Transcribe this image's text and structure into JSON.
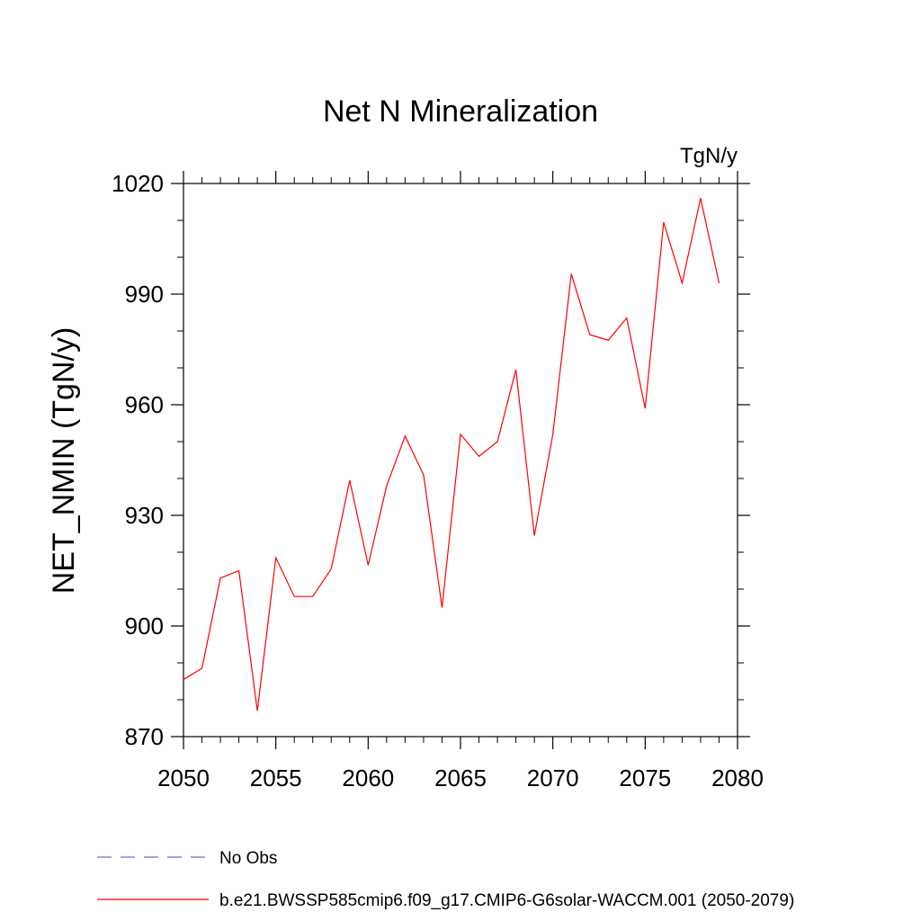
{
  "chart_data": {
    "type": "line",
    "title": "Net N Mineralization",
    "units_label": "TgN/y",
    "ylabel": "NET_NMIN  (TgN/y)",
    "xlabel": "",
    "xlim": [
      2050,
      2080
    ],
    "ylim": [
      870,
      1020
    ],
    "x_ticks": [
      "2050",
      "2055",
      "2060",
      "2065",
      "2070",
      "2075",
      "2080"
    ],
    "y_ticks": [
      "870",
      "900",
      "930",
      "960",
      "990",
      "1020"
    ],
    "grid": false,
    "legend_position": "bottom-left",
    "series": [
      {
        "name": "b.e21.BWSSP585cmip6.f09_g17.CMIP6-G6solar-WACCM.001 (2050-2079)",
        "color": "#ff0000",
        "style": "solid",
        "x": [
          2050,
          2051,
          2052,
          2053,
          2054,
          2055,
          2056,
          2057,
          2058,
          2059,
          2060,
          2061,
          2062,
          2063,
          2064,
          2065,
          2066,
          2067,
          2068,
          2069,
          2070,
          2071,
          2072,
          2073,
          2074,
          2075,
          2076,
          2077,
          2078,
          2079
        ],
        "values": [
          885.5,
          888.5,
          913,
          915,
          877,
          918.5,
          908,
          908,
          915.5,
          939.5,
          916.5,
          938,
          951.5,
          941,
          905,
          952,
          946,
          950,
          969.5,
          924.5,
          952,
          995.5,
          979,
          977.5,
          983.5,
          959,
          1009.5,
          993,
          1016,
          993
        ]
      },
      {
        "name": "No Obs",
        "color": "#7b68c8",
        "style": "dashed",
        "x": [],
        "values": []
      }
    ]
  }
}
